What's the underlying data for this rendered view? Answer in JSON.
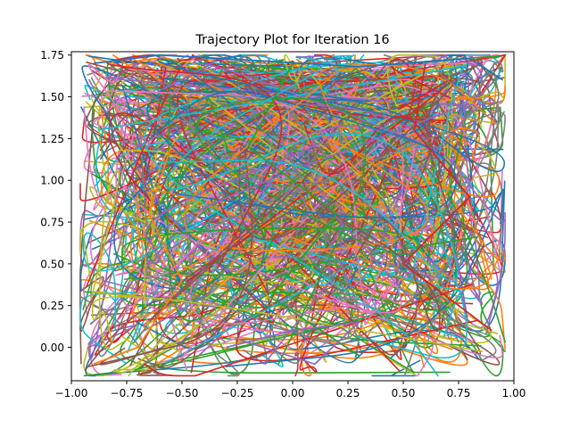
{
  "chart_data": {
    "type": "line",
    "title": "Trajectory Plot for Iteration 16",
    "xlabel": "",
    "ylabel": "",
    "xlim": [
      -1.0,
      1.0
    ],
    "ylim": [
      -0.2,
      1.77
    ],
    "x_ticks": [
      -1.0,
      -0.75,
      -0.5,
      -0.25,
      0.0,
      0.25,
      0.5,
      0.75,
      1.0
    ],
    "x_tick_labels": [
      "−1.00",
      "−0.75",
      "−0.50",
      "−0.25",
      "0.00",
      "0.25",
      "0.50",
      "0.75",
      "1.00"
    ],
    "y_ticks": [
      0.0,
      0.25,
      0.5,
      0.75,
      1.0,
      1.25,
      1.5,
      1.75
    ],
    "y_tick_labels": [
      "0.00",
      "0.25",
      "0.50",
      "0.75",
      "1.00",
      "1.25",
      "1.50",
      "1.75"
    ],
    "grid": false,
    "legend": "none",
    "colors": [
      "#1f77b4",
      "#ff7f0e",
      "#2ca02c",
      "#d62728",
      "#9467bd",
      "#8c564b",
      "#e377c2",
      "#7f7f7f",
      "#bcbd22",
      "#17becf"
    ],
    "region": {
      "corridors": [
        {
          "x": [
            -0.96,
            -0.44
          ],
          "y": [
            -0.17,
            1.75
          ]
        },
        {
          "x": [
            -0.36,
            0.36
          ],
          "y": [
            -0.17,
            1.75
          ]
        },
        {
          "x": [
            0.44,
            0.96
          ],
          "y": [
            -0.17,
            1.75
          ]
        }
      ],
      "top_bar": {
        "x": [
          -0.96,
          0.96
        ],
        "y": [
          1.4,
          1.75
        ]
      }
    },
    "series": [
      {
        "values": [
          [
            -0.9,
            1.7
          ],
          [
            -0.6,
            1.75
          ],
          [
            -0.2,
            1.72
          ],
          [
            0.3,
            1.68
          ],
          [
            0.8,
            1.73
          ],
          [
            0.95,
            1.6
          ]
        ]
      },
      {
        "values": [
          [
            -0.55,
            1.2
          ],
          [
            -0.65,
            0.8
          ],
          [
            -0.5,
            0.4
          ],
          [
            -0.7,
            0.0
          ],
          [
            -0.9,
            -0.1
          ]
        ]
      },
      {
        "values": [
          [
            0.0,
            1.7
          ],
          [
            -0.2,
            1.2
          ],
          [
            0.2,
            0.8
          ],
          [
            -0.1,
            0.3
          ],
          [
            0.3,
            -0.05
          ]
        ]
      },
      {
        "values": [
          [
            0.6,
            1.7
          ],
          [
            0.55,
            1.3
          ],
          [
            0.8,
            0.9
          ],
          [
            0.5,
            0.5
          ],
          [
            0.9,
            0.1
          ]
        ]
      },
      {
        "values": [
          [
            -0.3,
            0.0
          ],
          [
            0.0,
            0.1
          ],
          [
            0.3,
            0.15
          ],
          [
            0.1,
            -0.1
          ],
          [
            -0.25,
            0.05
          ]
        ]
      }
    ]
  }
}
